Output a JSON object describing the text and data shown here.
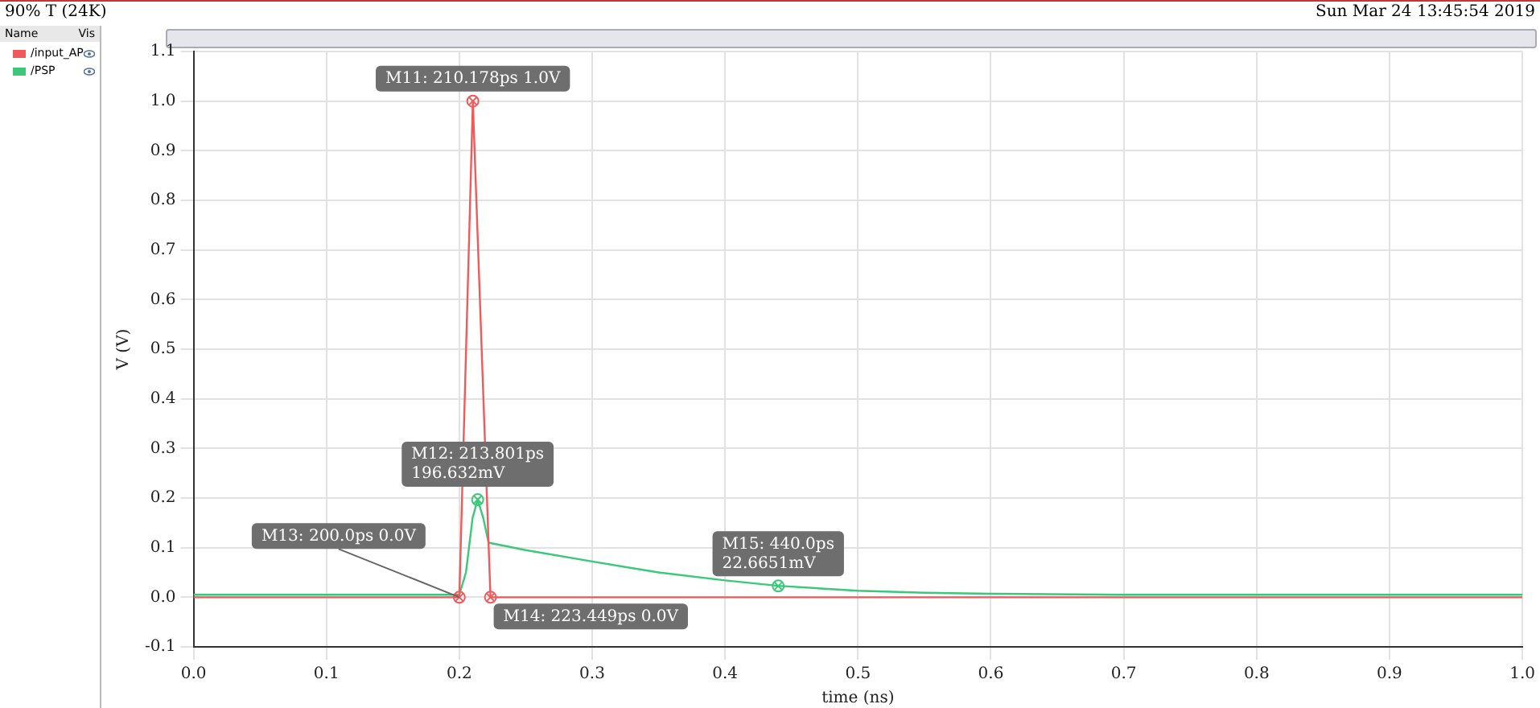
{
  "chart_data": {
    "type": "line",
    "title": "90% T (24K)",
    "subtitle": "Sun Mar 24 13:45:54 2019",
    "xlabel": "time (ns)",
    "ylabel": "V (V)",
    "legend_title": "Name",
    "annotations": [
      "Vis",
      {
        "text": "M11: 210.178ps 1.0V",
        "x": 0.210178,
        "y": 1.0
      },
      {
        "text": "M12: 213.801ps\n196.632mV",
        "x": 0.213801,
        "y": 0.196632
      },
      {
        "text": "M13: 200.0ps 0.0V",
        "x": 0.2,
        "y": 0.0
      },
      {
        "text": "M14: 223.449ps 0.0V",
        "x": 0.223449,
        "y": 0.0
      },
      {
        "text": "M15: 440.0ps\n22.6651mV",
        "x": 0.44,
        "y": 0.0226651
      }
    ],
    "series": [
      {
        "name": "/input_AP",
        "color": "#f05a5a",
        "x": [
          0,
          0.2,
          0.210178,
          0.223449,
          1.0
        ],
        "values": [
          0,
          0,
          1.0,
          0,
          0
        ]
      },
      {
        "name": "/PSP",
        "color": "#3cc87a",
        "x": [
          0,
          0.2,
          0.205,
          0.21,
          0.213801,
          0.218,
          0.222,
          0.25,
          0.3,
          0.35,
          0.4,
          0.44,
          0.5,
          0.55,
          0.6,
          0.7,
          0.8,
          1.0
        ],
        "values": [
          0.005,
          0.005,
          0.05,
          0.16,
          0.197,
          0.16,
          0.11,
          0.095,
          0.072,
          0.05,
          0.034,
          0.023,
          0.013,
          0.009,
          0.007,
          0.005,
          0.005,
          0.005
        ]
      }
    ],
    "xlim": [
      0,
      1.0
    ],
    "ylim": [
      -0.1,
      1.1
    ],
    "xticks": [
      {
        "value": 0,
        "label": "0.0"
      },
      0.1,
      0.2,
      0.3,
      0.4,
      0.5,
      0.6,
      0.7,
      0.8,
      0.9,
      {
        "value": 1.0,
        "label": "1.0"
      }
    ],
    "yticks": [
      -0.1,
      {
        "value": 0,
        "label": "0.0"
      },
      0.1,
      0.2,
      0.3,
      0.4,
      0.5,
      0.6,
      0.7,
      0.8,
      0.9,
      {
        "value": 1.0,
        "label": "1.0"
      },
      1.1
    ],
    "grid": true,
    "legend": "left",
    "line_style": "solid"
  }
}
